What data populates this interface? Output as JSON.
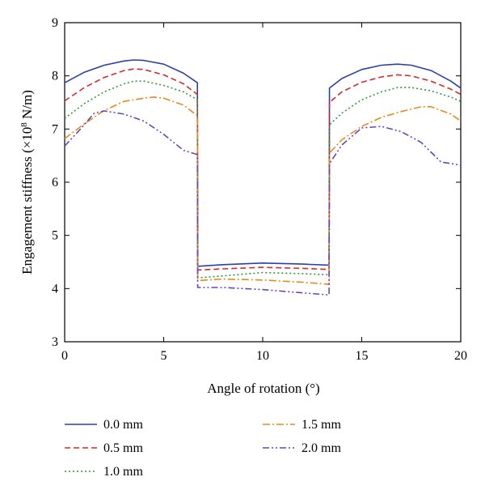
{
  "chart_data": {
    "type": "line",
    "xlabel": "Angle of rotation (°)",
    "ylabel_main": "Engagement stiffness (×10",
    "ylabel_exp": "8",
    "ylabel_unit": " N/m)",
    "xlim": [
      0,
      20
    ],
    "ylim": [
      3,
      9
    ],
    "xticks": [
      0,
      5,
      10,
      15,
      20
    ],
    "yticks": [
      3,
      4,
      5,
      6,
      7,
      8,
      9
    ],
    "grid": false,
    "legend_position": "bottom",
    "series": [
      {
        "name": "0.0 mm",
        "color": "#2b3fa8",
        "dash": "solid",
        "points": [
          [
            0,
            7.87
          ],
          [
            1,
            8.07
          ],
          [
            2,
            8.2
          ],
          [
            3,
            8.28
          ],
          [
            3.5,
            8.3
          ],
          [
            4,
            8.29
          ],
          [
            5,
            8.22
          ],
          [
            6,
            8.05
          ],
          [
            6.7,
            7.87
          ],
          [
            6.72,
            4.42
          ],
          [
            8,
            4.45
          ],
          [
            10,
            4.48
          ],
          [
            12,
            4.46
          ],
          [
            13.35,
            4.44
          ],
          [
            13.37,
            7.77
          ],
          [
            14,
            7.95
          ],
          [
            15,
            8.12
          ],
          [
            16,
            8.2
          ],
          [
            16.8,
            8.22
          ],
          [
            17.5,
            8.2
          ],
          [
            18.5,
            8.1
          ],
          [
            19.5,
            7.9
          ],
          [
            20,
            7.77
          ]
        ]
      },
      {
        "name": "0.5 mm",
        "color": "#d42a2a",
        "dash": "dashed",
        "points": [
          [
            0,
            7.53
          ],
          [
            1,
            7.78
          ],
          [
            2,
            7.97
          ],
          [
            3,
            8.1
          ],
          [
            3.5,
            8.13
          ],
          [
            4,
            8.12
          ],
          [
            5,
            8.02
          ],
          [
            6,
            7.85
          ],
          [
            6.7,
            7.65
          ],
          [
            6.72,
            4.35
          ],
          [
            8,
            4.37
          ],
          [
            10,
            4.4
          ],
          [
            12,
            4.38
          ],
          [
            13.35,
            4.36
          ],
          [
            13.37,
            7.5
          ],
          [
            14,
            7.7
          ],
          [
            15,
            7.88
          ],
          [
            16,
            7.98
          ],
          [
            16.8,
            8.02
          ],
          [
            17.5,
            8.0
          ],
          [
            18.5,
            7.9
          ],
          [
            19.5,
            7.75
          ],
          [
            20,
            7.65
          ]
        ]
      },
      {
        "name": "1.0 mm",
        "color": "#2e9a3a",
        "dash": "dotted",
        "points": [
          [
            0,
            7.2
          ],
          [
            1,
            7.48
          ],
          [
            2,
            7.7
          ],
          [
            3,
            7.85
          ],
          [
            3.5,
            7.9
          ],
          [
            4,
            7.9
          ],
          [
            5,
            7.82
          ],
          [
            6,
            7.7
          ],
          [
            6.7,
            7.55
          ],
          [
            6.72,
            4.2
          ],
          [
            8,
            4.24
          ],
          [
            10,
            4.3
          ],
          [
            12,
            4.28
          ],
          [
            13.35,
            4.26
          ],
          [
            13.37,
            7.08
          ],
          [
            14,
            7.3
          ],
          [
            15,
            7.55
          ],
          [
            16,
            7.7
          ],
          [
            16.8,
            7.78
          ],
          [
            17.5,
            7.78
          ],
          [
            18.5,
            7.72
          ],
          [
            19.5,
            7.6
          ],
          [
            20,
            7.52
          ]
        ]
      },
      {
        "name": "1.5 mm",
        "color": "#e88a1a",
        "dash": "dashdot",
        "points": [
          [
            0,
            6.82
          ],
          [
            1,
            7.1
          ],
          [
            2,
            7.35
          ],
          [
            3,
            7.52
          ],
          [
            3.5,
            7.55
          ],
          [
            4,
            7.58
          ],
          [
            4.5,
            7.6
          ],
          [
            5,
            7.58
          ],
          [
            6,
            7.45
          ],
          [
            6.7,
            7.25
          ],
          [
            6.72,
            4.15
          ],
          [
            8,
            4.18
          ],
          [
            10,
            4.16
          ],
          [
            12,
            4.12
          ],
          [
            13.35,
            4.08
          ],
          [
            13.37,
            6.55
          ],
          [
            14,
            6.8
          ],
          [
            15,
            7.05
          ],
          [
            16,
            7.22
          ],
          [
            17,
            7.33
          ],
          [
            18,
            7.42
          ],
          [
            18.5,
            7.42
          ],
          [
            19.5,
            7.28
          ],
          [
            20,
            7.15
          ]
        ]
      },
      {
        "name": "2.0 mm",
        "color": "#6a45b8",
        "dash": "dashdotdot",
        "points": [
          [
            0,
            6.68
          ],
          [
            0.8,
            7.0
          ],
          [
            1.5,
            7.3
          ],
          [
            2,
            7.34
          ],
          [
            3,
            7.28
          ],
          [
            4,
            7.15
          ],
          [
            5,
            6.9
          ],
          [
            6,
            6.6
          ],
          [
            6.7,
            6.52
          ],
          [
            6.72,
            4.02
          ],
          [
            8,
            4.02
          ],
          [
            10,
            3.98
          ],
          [
            12,
            3.92
          ],
          [
            13.35,
            3.88
          ],
          [
            13.37,
            6.35
          ],
          [
            14,
            6.7
          ],
          [
            15,
            7.02
          ],
          [
            16,
            7.05
          ],
          [
            17,
            6.95
          ],
          [
            18,
            6.75
          ],
          [
            19,
            6.38
          ],
          [
            20,
            6.32
          ]
        ]
      }
    ]
  }
}
